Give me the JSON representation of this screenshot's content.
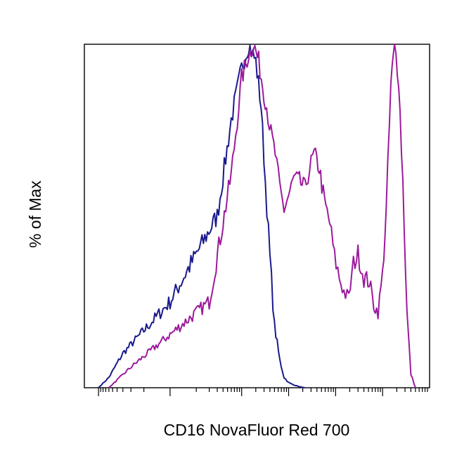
{
  "chart_data": {
    "type": "line",
    "title": "",
    "xlabel": "CD16 NovaFluor Red 700",
    "ylabel": "% of Max",
    "x_scale": "log",
    "xlim": [
      -200,
      1000000
    ],
    "ylim": [
      0,
      100
    ],
    "grid": false,
    "legend": "none",
    "series": [
      {
        "color": "#1a1a8c",
        "x": [
          -100,
          -60,
          -30,
          0,
          30,
          60,
          100,
          140,
          200,
          260,
          320,
          400,
          500,
          650,
          800,
          1000,
          1300,
          1700,
          2200
        ],
        "values": [
          0,
          3,
          10,
          25,
          50,
          78,
          93,
          100,
          95,
          82,
          60,
          38,
          18,
          8,
          3,
          1.5,
          0.8,
          0.3,
          0
        ]
      },
      {
        "color": "#9c1a9c",
        "x": [
          -60,
          -20,
          20,
          60,
          100,
          140,
          180,
          230,
          280,
          340,
          420,
          520,
          650,
          800,
          1000,
          1300,
          1700,
          2200,
          2800,
          3500,
          4500,
          5800,
          7500,
          9500,
          12000,
          15000,
          19000,
          24000,
          30000,
          40000,
          52000,
          65000,
          80000,
          100000,
          120000,
          150000,
          180000,
          220000,
          270000,
          330000,
          400000,
          500000
        ],
        "values": [
          0,
          6,
          25,
          62,
          90,
          97,
          100,
          95,
          88,
          82,
          74,
          68,
          58,
          52,
          56,
          61,
          60,
          58,
          64,
          68,
          64,
          54,
          48,
          38,
          32,
          28,
          26,
          36,
          39,
          32,
          31,
          24,
          22,
          33,
          52,
          88,
          100,
          90,
          60,
          22,
          4,
          0
        ]
      }
    ]
  }
}
